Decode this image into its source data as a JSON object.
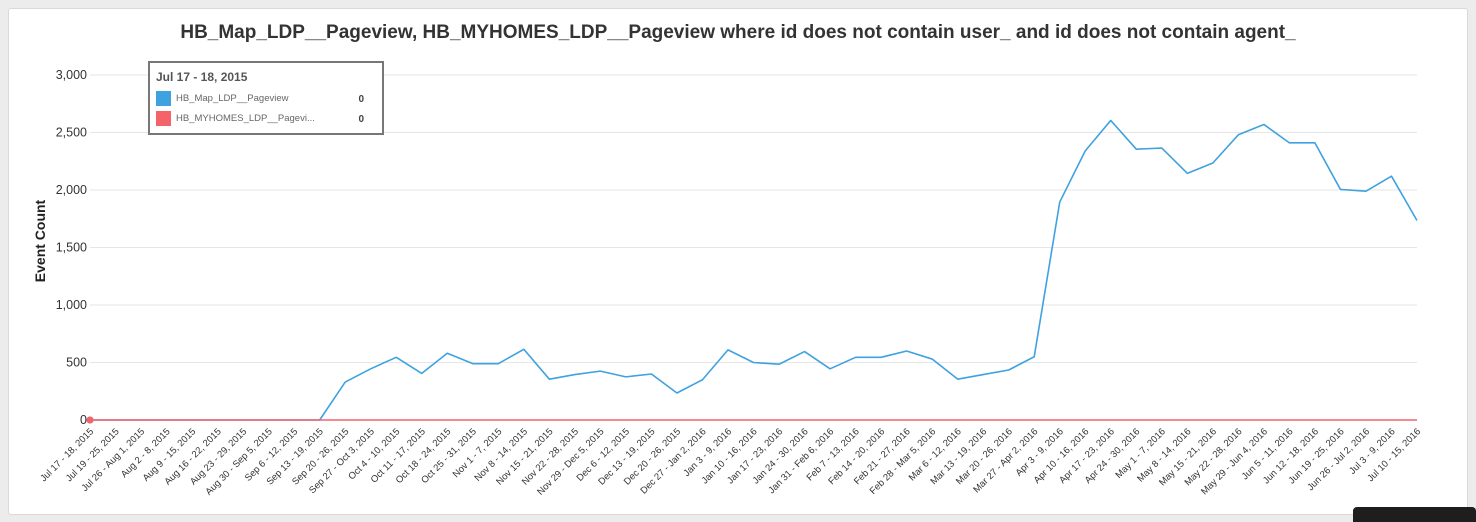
{
  "chart_data": {
    "type": "line",
    "title": "HB_Map_LDP__Pageview, HB_MYHOMES_LDP__Pageview where id does not contain user_ and id does not contain agent_",
    "ylabel": "Event Count",
    "xlabel": "",
    "ylim": [
      0,
      3000
    ],
    "yticks": [
      "0",
      "500",
      "1,000",
      "1,500",
      "2,000",
      "2,500",
      "3,000"
    ],
    "ytick_values": [
      0,
      500,
      1000,
      1500,
      2000,
      2500,
      3000
    ],
    "grid": true,
    "categories": [
      "Jul 17 - 18, 2015",
      "Jul 19 - 25, 2015",
      "Jul 26 - Aug 1, 2015",
      "Aug 2 - 8, 2015",
      "Aug 9 - 15, 2015",
      "Aug 16 - 22, 2015",
      "Aug 23 - 29, 2015",
      "Aug 30 - Sep 5, 2015",
      "Sep 6 - 12, 2015",
      "Sep 13 - 19, 2015",
      "Sep 20 - 26, 2015",
      "Sep 27 - Oct 3, 2015",
      "Oct 4 - 10, 2015",
      "Oct 11 - 17, 2015",
      "Oct 18 - 24, 2015",
      "Oct 25 - 31, 2015",
      "Nov 1 - 7, 2015",
      "Nov 8 - 14, 2015",
      "Nov 15 - 21, 2015",
      "Nov 22 - 28, 2015",
      "Nov 29 - Dec 5, 2015",
      "Dec 6 - 12, 2015",
      "Dec 13 - 19, 2015",
      "Dec 20 - 26, 2015",
      "Dec 27 - Jan 2, 2016",
      "Jan 3 - 9, 2016",
      "Jan 10 - 16, 2016",
      "Jan 17 - 23, 2016",
      "Jan 24 - 30, 2016",
      "Jan 31 - Feb 6, 2016",
      "Feb 7 - 13, 2016",
      "Feb 14 - 20, 2016",
      "Feb 21 - 27, 2016",
      "Feb 28 - Mar 5, 2016",
      "Mar 6 - 12, 2016",
      "Mar 13 - 19, 2016",
      "Mar 20 - 26, 2016",
      "Mar 27 - Apr 2, 2016",
      "Apr 3 - 9, 2016",
      "Apr 10 - 16, 2016",
      "Apr 17 - 23, 2016",
      "Apr 24 - 30, 2016",
      "May 1 - 7, 2016",
      "May 8 - 14, 2016",
      "May 15 - 21, 2016",
      "May 22 - 28, 2016",
      "May 29 - Jun 4, 2016",
      "Jun 5 - 11, 2016",
      "Jun 12 - 18, 2016",
      "Jun 19 - 25, 2016",
      "Jun 26 - Jul 2, 2016",
      "Jul 3 - 9, 2016",
      "Jul 10 - 15, 2016"
    ],
    "series": [
      {
        "name": "HB_Map_LDP__Pageview",
        "color": "#3fa2e0",
        "values": [
          0,
          0,
          0,
          0,
          0,
          0,
          0,
          0,
          0,
          0,
          330,
          445,
          545,
          405,
          580,
          490,
          490,
          615,
          355,
          395,
          425,
          375,
          400,
          235,
          350,
          610,
          500,
          485,
          595,
          445,
          545,
          545,
          600,
          530,
          355,
          395,
          435,
          550,
          1895,
          2340,
          2605,
          2355,
          2365,
          2145,
          2235,
          2480,
          2570,
          2410,
          2410,
          2005,
          1990,
          2120,
          1735
        ]
      },
      {
        "name": "HB_MYHOMES_LDP__Pageview",
        "color": "#f4626a",
        "values": [
          0,
          0,
          0,
          0,
          0,
          0,
          0,
          0,
          0,
          0,
          0,
          0,
          0,
          0,
          0,
          0,
          0,
          0,
          0,
          0,
          0,
          0,
          0,
          0,
          0,
          0,
          0,
          0,
          0,
          0,
          0,
          0,
          0,
          0,
          0,
          0,
          0,
          0,
          0,
          0,
          0,
          0,
          0,
          0,
          0,
          0,
          0,
          0,
          0,
          0,
          0,
          0,
          0
        ]
      }
    ],
    "highlight_index": 0
  },
  "tooltip": {
    "title": "Jul 17 - 18, 2015",
    "rows": [
      {
        "label": "HB_Map_LDP__Pageview",
        "value": "0",
        "color": "#3fa2e0"
      },
      {
        "label": "HB_MYHOMES_LDP__Pagevi...",
        "value": "0",
        "color": "#f4626a"
      }
    ]
  }
}
